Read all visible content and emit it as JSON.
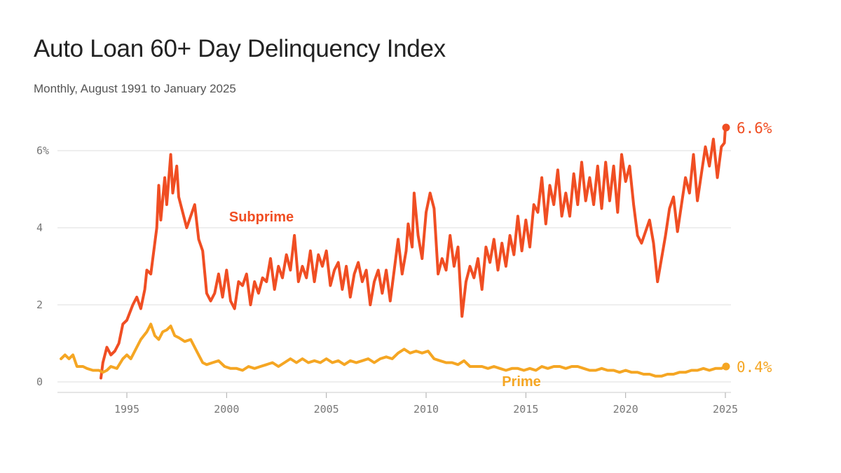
{
  "title": "Auto Loan 60+ Day Delinquency Index",
  "subtitle": "Monthly, August 1991 to January 2025",
  "chart_data": {
    "type": "line",
    "title": "Auto Loan 60+ Day Delinquency Index",
    "subtitle": "Monthly, August 1991 to January 2025",
    "xlabel": "",
    "ylabel": "",
    "xlim": [
      1991.5,
      2025.1
    ],
    "ylim": [
      0,
      6.5
    ],
    "y_ticks": [
      0,
      2,
      4,
      6
    ],
    "y_tick_labels": [
      "0",
      "2",
      "4",
      "6%"
    ],
    "x_ticks": [
      1995,
      2000,
      2005,
      2010,
      2015,
      2020,
      2025
    ],
    "x_tick_labels": [
      "1995",
      "2000",
      "2005",
      "2010",
      "2015",
      "2020",
      "2025"
    ],
    "grid": true,
    "legend": "none",
    "series": [
      {
        "name": "Subprime",
        "color": "#f04e23",
        "end_label": "6.6%",
        "points": [
          [
            1993.7,
            0.1
          ],
          [
            1993.8,
            0.5
          ],
          [
            1994.0,
            0.9
          ],
          [
            1994.2,
            0.7
          ],
          [
            1994.4,
            0.8
          ],
          [
            1994.6,
            1.0
          ],
          [
            1994.8,
            1.5
          ],
          [
            1995.0,
            1.6
          ],
          [
            1995.3,
            2.0
          ],
          [
            1995.5,
            2.2
          ],
          [
            1995.7,
            1.9
          ],
          [
            1995.9,
            2.4
          ],
          [
            1996.0,
            2.9
          ],
          [
            1996.2,
            2.8
          ],
          [
            1996.5,
            4.0
          ],
          [
            1996.6,
            5.1
          ],
          [
            1996.7,
            4.2
          ],
          [
            1996.9,
            5.3
          ],
          [
            1997.0,
            4.6
          ],
          [
            1997.2,
            5.9
          ],
          [
            1997.3,
            4.9
          ],
          [
            1997.5,
            5.6
          ],
          [
            1997.6,
            4.8
          ],
          [
            1997.8,
            4.4
          ],
          [
            1998.0,
            4.0
          ],
          [
            1998.2,
            4.3
          ],
          [
            1998.4,
            4.6
          ],
          [
            1998.6,
            3.7
          ],
          [
            1998.8,
            3.4
          ],
          [
            1999.0,
            2.3
          ],
          [
            1999.2,
            2.1
          ],
          [
            1999.4,
            2.3
          ],
          [
            1999.6,
            2.8
          ],
          [
            1999.8,
            2.2
          ],
          [
            2000.0,
            2.9
          ],
          [
            2000.2,
            2.1
          ],
          [
            2000.4,
            1.9
          ],
          [
            2000.6,
            2.6
          ],
          [
            2000.8,
            2.5
          ],
          [
            2001.0,
            2.8
          ],
          [
            2001.2,
            2.0
          ],
          [
            2001.4,
            2.6
          ],
          [
            2001.6,
            2.3
          ],
          [
            2001.8,
            2.7
          ],
          [
            2002.0,
            2.6
          ],
          [
            2002.2,
            3.2
          ],
          [
            2002.4,
            2.4
          ],
          [
            2002.6,
            3.0
          ],
          [
            2002.8,
            2.7
          ],
          [
            2003.0,
            3.3
          ],
          [
            2003.2,
            2.9
          ],
          [
            2003.4,
            3.8
          ],
          [
            2003.6,
            2.6
          ],
          [
            2003.8,
            3.0
          ],
          [
            2004.0,
            2.7
          ],
          [
            2004.2,
            3.4
          ],
          [
            2004.4,
            2.6
          ],
          [
            2004.6,
            3.3
          ],
          [
            2004.8,
            3.0
          ],
          [
            2005.0,
            3.4
          ],
          [
            2005.2,
            2.5
          ],
          [
            2005.4,
            2.9
          ],
          [
            2005.6,
            3.1
          ],
          [
            2005.8,
            2.4
          ],
          [
            2006.0,
            3.0
          ],
          [
            2006.2,
            2.2
          ],
          [
            2006.4,
            2.8
          ],
          [
            2006.6,
            3.1
          ],
          [
            2006.8,
            2.6
          ],
          [
            2007.0,
            2.9
          ],
          [
            2007.2,
            2.0
          ],
          [
            2007.4,
            2.6
          ],
          [
            2007.6,
            2.9
          ],
          [
            2007.8,
            2.3
          ],
          [
            2008.0,
            2.9
          ],
          [
            2008.2,
            2.1
          ],
          [
            2008.4,
            2.9
          ],
          [
            2008.6,
            3.7
          ],
          [
            2008.8,
            2.8
          ],
          [
            2009.0,
            3.4
          ],
          [
            2009.1,
            4.1
          ],
          [
            2009.3,
            3.5
          ],
          [
            2009.4,
            4.9
          ],
          [
            2009.6,
            3.8
          ],
          [
            2009.8,
            3.2
          ],
          [
            2010.0,
            4.4
          ],
          [
            2010.2,
            4.9
          ],
          [
            2010.4,
            4.5
          ],
          [
            2010.6,
            2.8
          ],
          [
            2010.8,
            3.2
          ],
          [
            2011.0,
            2.9
          ],
          [
            2011.2,
            3.8
          ],
          [
            2011.4,
            3.0
          ],
          [
            2011.6,
            3.5
          ],
          [
            2011.8,
            1.7
          ],
          [
            2012.0,
            2.6
          ],
          [
            2012.2,
            3.0
          ],
          [
            2012.4,
            2.7
          ],
          [
            2012.6,
            3.2
          ],
          [
            2012.8,
            2.4
          ],
          [
            2013.0,
            3.5
          ],
          [
            2013.2,
            3.1
          ],
          [
            2013.4,
            3.7
          ],
          [
            2013.6,
            2.9
          ],
          [
            2013.8,
            3.6
          ],
          [
            2014.0,
            3.0
          ],
          [
            2014.2,
            3.8
          ],
          [
            2014.4,
            3.3
          ],
          [
            2014.6,
            4.3
          ],
          [
            2014.8,
            3.4
          ],
          [
            2015.0,
            4.2
          ],
          [
            2015.2,
            3.5
          ],
          [
            2015.4,
            4.6
          ],
          [
            2015.6,
            4.4
          ],
          [
            2015.8,
            5.3
          ],
          [
            2016.0,
            4.1
          ],
          [
            2016.2,
            5.1
          ],
          [
            2016.4,
            4.6
          ],
          [
            2016.6,
            5.5
          ],
          [
            2016.8,
            4.3
          ],
          [
            2017.0,
            4.9
          ],
          [
            2017.2,
            4.3
          ],
          [
            2017.4,
            5.4
          ],
          [
            2017.6,
            4.6
          ],
          [
            2017.8,
            5.7
          ],
          [
            2018.0,
            4.7
          ],
          [
            2018.2,
            5.3
          ],
          [
            2018.4,
            4.6
          ],
          [
            2018.6,
            5.6
          ],
          [
            2018.8,
            4.5
          ],
          [
            2019.0,
            5.7
          ],
          [
            2019.2,
            4.7
          ],
          [
            2019.4,
            5.6
          ],
          [
            2019.6,
            4.4
          ],
          [
            2019.8,
            5.9
          ],
          [
            2020.0,
            5.2
          ],
          [
            2020.2,
            5.6
          ],
          [
            2020.4,
            4.6
          ],
          [
            2020.6,
            3.8
          ],
          [
            2020.8,
            3.6
          ],
          [
            2021.0,
            3.9
          ],
          [
            2021.2,
            4.2
          ],
          [
            2021.4,
            3.6
          ],
          [
            2021.6,
            2.6
          ],
          [
            2021.8,
            3.2
          ],
          [
            2022.0,
            3.8
          ],
          [
            2022.2,
            4.5
          ],
          [
            2022.4,
            4.8
          ],
          [
            2022.6,
            3.9
          ],
          [
            2022.8,
            4.6
          ],
          [
            2023.0,
            5.3
          ],
          [
            2023.2,
            4.9
          ],
          [
            2023.4,
            5.9
          ],
          [
            2023.6,
            4.7
          ],
          [
            2023.8,
            5.4
          ],
          [
            2024.0,
            6.1
          ],
          [
            2024.2,
            5.6
          ],
          [
            2024.4,
            6.3
          ],
          [
            2024.6,
            5.3
          ],
          [
            2024.8,
            6.1
          ],
          [
            2024.95,
            6.2
          ],
          [
            2025.0,
            6.6
          ]
        ]
      },
      {
        "name": "Prime",
        "color": "#f5a623",
        "end_label": "0.4%",
        "points": [
          [
            1991.7,
            0.6
          ],
          [
            1991.9,
            0.7
          ],
          [
            1992.1,
            0.6
          ],
          [
            1992.3,
            0.7
          ],
          [
            1992.5,
            0.4
          ],
          [
            1992.8,
            0.4
          ],
          [
            1993.0,
            0.35
          ],
          [
            1993.3,
            0.3
          ],
          [
            1993.6,
            0.3
          ],
          [
            1993.8,
            0.25
          ],
          [
            1994.0,
            0.3
          ],
          [
            1994.2,
            0.4
          ],
          [
            1994.5,
            0.35
          ],
          [
            1994.8,
            0.6
          ],
          [
            1995.0,
            0.7
          ],
          [
            1995.2,
            0.6
          ],
          [
            1995.5,
            0.9
          ],
          [
            1995.7,
            1.1
          ],
          [
            1996.0,
            1.3
          ],
          [
            1996.2,
            1.5
          ],
          [
            1996.4,
            1.2
          ],
          [
            1996.6,
            1.1
          ],
          [
            1996.8,
            1.3
          ],
          [
            1997.0,
            1.35
          ],
          [
            1997.2,
            1.45
          ],
          [
            1997.4,
            1.2
          ],
          [
            1997.6,
            1.15
          ],
          [
            1997.9,
            1.05
          ],
          [
            1998.2,
            1.1
          ],
          [
            1998.5,
            0.8
          ],
          [
            1998.8,
            0.5
          ],
          [
            1999.0,
            0.45
          ],
          [
            1999.3,
            0.5
          ],
          [
            1999.6,
            0.55
          ],
          [
            1999.9,
            0.4
          ],
          [
            2000.2,
            0.35
          ],
          [
            2000.5,
            0.35
          ],
          [
            2000.8,
            0.3
          ],
          [
            2001.1,
            0.4
          ],
          [
            2001.4,
            0.35
          ],
          [
            2001.7,
            0.4
          ],
          [
            2002.0,
            0.45
          ],
          [
            2002.3,
            0.5
          ],
          [
            2002.6,
            0.4
          ],
          [
            2002.9,
            0.5
          ],
          [
            2003.2,
            0.6
          ],
          [
            2003.5,
            0.5
          ],
          [
            2003.8,
            0.6
          ],
          [
            2004.1,
            0.5
          ],
          [
            2004.4,
            0.55
          ],
          [
            2004.7,
            0.5
          ],
          [
            2005.0,
            0.6
          ],
          [
            2005.3,
            0.5
          ],
          [
            2005.6,
            0.55
          ],
          [
            2005.9,
            0.45
          ],
          [
            2006.2,
            0.55
          ],
          [
            2006.5,
            0.5
          ],
          [
            2006.8,
            0.55
          ],
          [
            2007.1,
            0.6
          ],
          [
            2007.4,
            0.5
          ],
          [
            2007.7,
            0.6
          ],
          [
            2008.0,
            0.65
          ],
          [
            2008.3,
            0.6
          ],
          [
            2008.6,
            0.75
          ],
          [
            2008.9,
            0.85
          ],
          [
            2009.2,
            0.75
          ],
          [
            2009.5,
            0.8
          ],
          [
            2009.8,
            0.75
          ],
          [
            2010.1,
            0.8
          ],
          [
            2010.4,
            0.6
          ],
          [
            2010.7,
            0.55
          ],
          [
            2011.0,
            0.5
          ],
          [
            2011.3,
            0.5
          ],
          [
            2011.6,
            0.45
          ],
          [
            2011.9,
            0.55
          ],
          [
            2012.2,
            0.4
          ],
          [
            2012.5,
            0.4
          ],
          [
            2012.8,
            0.4
          ],
          [
            2013.1,
            0.35
          ],
          [
            2013.4,
            0.4
          ],
          [
            2013.7,
            0.35
          ],
          [
            2014.0,
            0.3
          ],
          [
            2014.3,
            0.35
          ],
          [
            2014.6,
            0.35
          ],
          [
            2014.9,
            0.3
          ],
          [
            2015.2,
            0.35
          ],
          [
            2015.5,
            0.3
          ],
          [
            2015.8,
            0.4
          ],
          [
            2016.1,
            0.35
          ],
          [
            2016.4,
            0.4
          ],
          [
            2016.7,
            0.4
          ],
          [
            2017.0,
            0.35
          ],
          [
            2017.3,
            0.4
          ],
          [
            2017.6,
            0.4
          ],
          [
            2017.9,
            0.35
          ],
          [
            2018.2,
            0.3
          ],
          [
            2018.5,
            0.3
          ],
          [
            2018.8,
            0.35
          ],
          [
            2019.1,
            0.3
          ],
          [
            2019.4,
            0.3
          ],
          [
            2019.7,
            0.25
          ],
          [
            2020.0,
            0.3
          ],
          [
            2020.3,
            0.25
          ],
          [
            2020.6,
            0.25
          ],
          [
            2020.9,
            0.2
          ],
          [
            2021.2,
            0.2
          ],
          [
            2021.5,
            0.15
          ],
          [
            2021.8,
            0.15
          ],
          [
            2022.1,
            0.2
          ],
          [
            2022.4,
            0.2
          ],
          [
            2022.7,
            0.25
          ],
          [
            2023.0,
            0.25
          ],
          [
            2023.3,
            0.3
          ],
          [
            2023.6,
            0.3
          ],
          [
            2023.9,
            0.35
          ],
          [
            2024.2,
            0.3
          ],
          [
            2024.5,
            0.35
          ],
          [
            2024.8,
            0.35
          ],
          [
            2025.0,
            0.4
          ]
        ]
      }
    ]
  }
}
